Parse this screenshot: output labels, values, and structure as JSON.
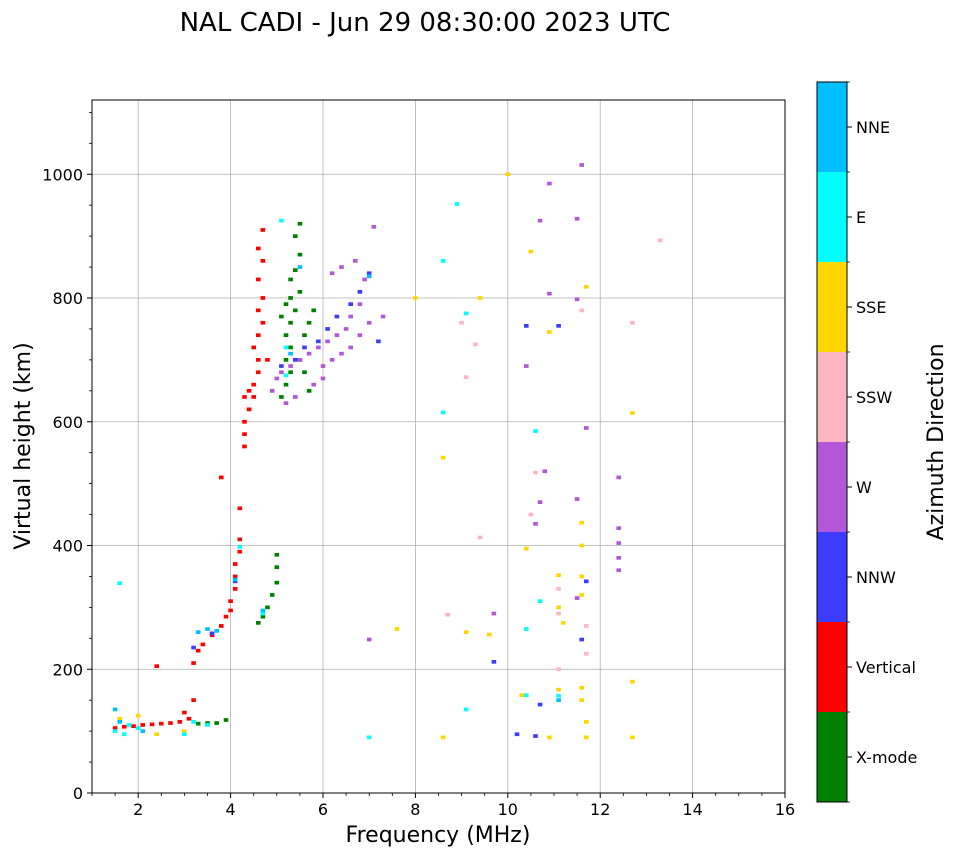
{
  "chart_data": {
    "type": "scatter",
    "title": "NAL CADI - Jun 29 08:30:00 2023 UTC",
    "xlabel": "Frequency (MHz)",
    "ylabel": "Virtual height (km)",
    "xlim": [
      1,
      16
    ],
    "ylim": [
      0,
      1120
    ],
    "xticks": [
      2,
      4,
      6,
      8,
      10,
      12,
      14,
      16
    ],
    "yticks": [
      0,
      200,
      400,
      600,
      800,
      1000
    ],
    "grid": true,
    "colorbar": {
      "label": "Azimuth Direction",
      "entries": [
        {
          "name": "X-mode",
          "color": "#008000"
        },
        {
          "name": "Vertical",
          "color": "#ff0000"
        },
        {
          "name": "NNW",
          "color": "#3c3cff"
        },
        {
          "name": "W",
          "color": "#b158d8"
        },
        {
          "name": "SSW",
          "color": "#ffb6c1"
        },
        {
          "name": "SSE",
          "color": "#ffd700"
        },
        {
          "name": "E",
          "color": "#00ffff"
        },
        {
          "name": "NNE",
          "color": "#00bfff"
        }
      ]
    },
    "point_width_mhz": 0.1,
    "point_height_km": 6,
    "series": [
      {
        "name": "X-mode",
        "points": [
          [
            3.3,
            112
          ],
          [
            3.5,
            113
          ],
          [
            3.7,
            113
          ],
          [
            3.9,
            118
          ],
          [
            4.6,
            275
          ],
          [
            4.7,
            285
          ],
          [
            4.8,
            300
          ],
          [
            4.9,
            320
          ],
          [
            5.0,
            340
          ],
          [
            5.0,
            365
          ],
          [
            5.0,
            385
          ],
          [
            5.1,
            640
          ],
          [
            5.2,
            660
          ],
          [
            5.2,
            700
          ],
          [
            5.3,
            720
          ],
          [
            5.2,
            740
          ],
          [
            5.3,
            760
          ],
          [
            5.4,
            780
          ],
          [
            5.2,
            790
          ],
          [
            5.3,
            800
          ],
          [
            5.5,
            810
          ],
          [
            5.3,
            830
          ],
          [
            5.4,
            845
          ],
          [
            5.5,
            870
          ],
          [
            5.4,
            900
          ],
          [
            5.5,
            920
          ],
          [
            5.6,
            740
          ],
          [
            5.5,
            700
          ],
          [
            5.7,
            760
          ],
          [
            5.8,
            780
          ],
          [
            5.6,
            680
          ],
          [
            5.3,
            680
          ],
          [
            5.7,
            650
          ],
          [
            5.1,
            770
          ]
        ]
      },
      {
        "name": "Vertical",
        "points": [
          [
            1.5,
            105
          ],
          [
            1.7,
            107
          ],
          [
            1.9,
            108
          ],
          [
            2.1,
            110
          ],
          [
            2.3,
            111
          ],
          [
            2.5,
            112
          ],
          [
            2.7,
            113
          ],
          [
            2.9,
            115
          ],
          [
            3.1,
            120
          ],
          [
            3.0,
            130
          ],
          [
            3.2,
            150
          ],
          [
            2.4,
            205
          ],
          [
            3.2,
            210
          ],
          [
            3.3,
            230
          ],
          [
            3.4,
            240
          ],
          [
            3.6,
            255
          ],
          [
            3.8,
            270
          ],
          [
            3.9,
            285
          ],
          [
            4.0,
            295
          ],
          [
            4.0,
            310
          ],
          [
            4.1,
            330
          ],
          [
            4.1,
            350
          ],
          [
            4.1,
            370
          ],
          [
            4.2,
            390
          ],
          [
            4.2,
            410
          ],
          [
            4.2,
            460
          ],
          [
            3.8,
            510
          ],
          [
            4.3,
            560
          ],
          [
            4.3,
            580
          ],
          [
            4.3,
            600
          ],
          [
            4.4,
            620
          ],
          [
            4.5,
            640
          ],
          [
            4.5,
            660
          ],
          [
            4.6,
            680
          ],
          [
            4.6,
            700
          ],
          [
            4.5,
            720
          ],
          [
            4.6,
            740
          ],
          [
            4.7,
            760
          ],
          [
            4.6,
            780
          ],
          [
            4.7,
            800
          ],
          [
            4.6,
            830
          ],
          [
            4.7,
            860
          ],
          [
            4.6,
            880
          ],
          [
            4.7,
            910
          ],
          [
            4.4,
            650
          ],
          [
            4.3,
            640
          ],
          [
            4.8,
            700
          ]
        ]
      },
      {
        "name": "NNW",
        "points": [
          [
            3.2,
            235
          ],
          [
            3.6,
            258
          ],
          [
            4.1,
            342
          ],
          [
            5.1,
            690
          ],
          [
            5.4,
            700
          ],
          [
            5.6,
            720
          ],
          [
            5.9,
            730
          ],
          [
            6.1,
            750
          ],
          [
            6.3,
            770
          ],
          [
            6.6,
            790
          ],
          [
            6.8,
            810
          ],
          [
            7.0,
            840
          ],
          [
            7.2,
            730
          ],
          [
            10.4,
            755
          ],
          [
            11.1,
            755
          ],
          [
            9.7,
            212
          ],
          [
            10.2,
            95
          ],
          [
            10.6,
            92
          ],
          [
            10.7,
            143
          ],
          [
            11.6,
            248
          ],
          [
            11.7,
            342
          ]
        ]
      },
      {
        "name": "W",
        "points": [
          [
            4.9,
            650
          ],
          [
            5.0,
            670
          ],
          [
            5.1,
            680
          ],
          [
            5.3,
            690
          ],
          [
            5.5,
            700
          ],
          [
            5.7,
            710
          ],
          [
            5.9,
            720
          ],
          [
            6.1,
            730
          ],
          [
            6.3,
            740
          ],
          [
            6.5,
            750
          ],
          [
            6.6,
            770
          ],
          [
            6.8,
            790
          ],
          [
            6.0,
            690
          ],
          [
            6.2,
            700
          ],
          [
            6.4,
            710
          ],
          [
            6.6,
            720
          ],
          [
            6.8,
            740
          ],
          [
            7.0,
            760
          ],
          [
            5.8,
            660
          ],
          [
            6.0,
            670
          ],
          [
            5.4,
            640
          ],
          [
            5.2,
            630
          ],
          [
            6.9,
            830
          ],
          [
            7.1,
            915
          ],
          [
            6.7,
            860
          ],
          [
            6.4,
            850
          ],
          [
            6.2,
            840
          ],
          [
            7.3,
            770
          ],
          [
            10.7,
            925
          ],
          [
            10.9,
            985
          ],
          [
            11.6,
            1015
          ],
          [
            11.5,
            928
          ],
          [
            10.8,
            520
          ],
          [
            10.7,
            470
          ],
          [
            11.5,
            475
          ],
          [
            12.4,
            510
          ],
          [
            12.4,
            428
          ],
          [
            12.4,
            404
          ],
          [
            12.4,
            380
          ],
          [
            12.4,
            360
          ],
          [
            11.7,
            590
          ],
          [
            11.5,
            315
          ],
          [
            9.7,
            290
          ],
          [
            7.0,
            248
          ],
          [
            10.9,
            807
          ],
          [
            11.5,
            798
          ],
          [
            10.4,
            690
          ],
          [
            10.6,
            435
          ]
        ]
      },
      {
        "name": "SSW",
        "points": [
          [
            11.1,
            200
          ],
          [
            11.1,
            290
          ],
          [
            11.7,
            225
          ],
          [
            11.6,
            780
          ],
          [
            12.7,
            760
          ],
          [
            9.0,
            760
          ],
          [
            9.1,
            672
          ],
          [
            9.3,
            725
          ],
          [
            8.7,
            288
          ],
          [
            9.4,
            413
          ],
          [
            10.5,
            450
          ],
          [
            10.6,
            518
          ],
          [
            11.1,
            330
          ],
          [
            11.7,
            270
          ],
          [
            13.3,
            893
          ]
        ]
      },
      {
        "name": "SSE",
        "points": [
          [
            1.6,
            120
          ],
          [
            2.0,
            125
          ],
          [
            2.4,
            95
          ],
          [
            3.0,
            100
          ],
          [
            8.6,
            542
          ],
          [
            8.0,
            800
          ],
          [
            9.4,
            800
          ],
          [
            10.0,
            1000
          ],
          [
            10.5,
            875
          ],
          [
            10.9,
            745
          ],
          [
            11.1,
            352
          ],
          [
            11.1,
            300
          ],
          [
            11.2,
            275
          ],
          [
            11.6,
            320
          ],
          [
            11.6,
            350
          ],
          [
            11.6,
            400
          ],
          [
            11.6,
            437
          ],
          [
            11.7,
            818
          ],
          [
            12.7,
            614
          ],
          [
            12.7,
            180
          ],
          [
            12.7,
            90
          ],
          [
            9.1,
            260
          ],
          [
            9.6,
            256
          ],
          [
            10.4,
            395
          ],
          [
            11.1,
            167
          ],
          [
            11.6,
            170
          ],
          [
            11.6,
            150
          ],
          [
            11.7,
            115
          ],
          [
            11.7,
            90
          ],
          [
            8.6,
            90
          ],
          [
            7.6,
            265
          ],
          [
            10.3,
            158
          ],
          [
            10.9,
            90
          ]
        ]
      },
      {
        "name": "E",
        "points": [
          [
            1.6,
            339
          ],
          [
            1.5,
            100
          ],
          [
            1.7,
            95
          ],
          [
            1.8,
            110
          ],
          [
            2.0,
            105
          ],
          [
            3.0,
            95
          ],
          [
            3.2,
            115
          ],
          [
            8.6,
            860
          ],
          [
            8.9,
            952
          ],
          [
            9.1,
            775
          ],
          [
            8.6,
            615
          ],
          [
            9.1,
            135
          ],
          [
            7.0,
            90
          ],
          [
            10.6,
            585
          ],
          [
            10.4,
            265
          ],
          [
            10.4,
            158
          ],
          [
            11.1,
            157
          ],
          [
            10.7,
            310
          ],
          [
            4.2,
            398
          ],
          [
            4.7,
            290
          ],
          [
            3.5,
            110
          ],
          [
            5.2,
            720
          ],
          [
            5.2,
            675
          ],
          [
            5.1,
            925
          ]
        ]
      },
      {
        "name": "NNE",
        "points": [
          [
            1.5,
            135
          ],
          [
            1.6,
            115
          ],
          [
            2.1,
            100
          ],
          [
            3.3,
            260
          ],
          [
            3.5,
            265
          ],
          [
            3.7,
            262
          ],
          [
            4.1,
            345
          ],
          [
            4.7,
            295
          ],
          [
            5.5,
            850
          ],
          [
            7.0,
            835
          ],
          [
            11.1,
            150
          ],
          [
            5.3,
            710
          ]
        ]
      }
    ]
  }
}
